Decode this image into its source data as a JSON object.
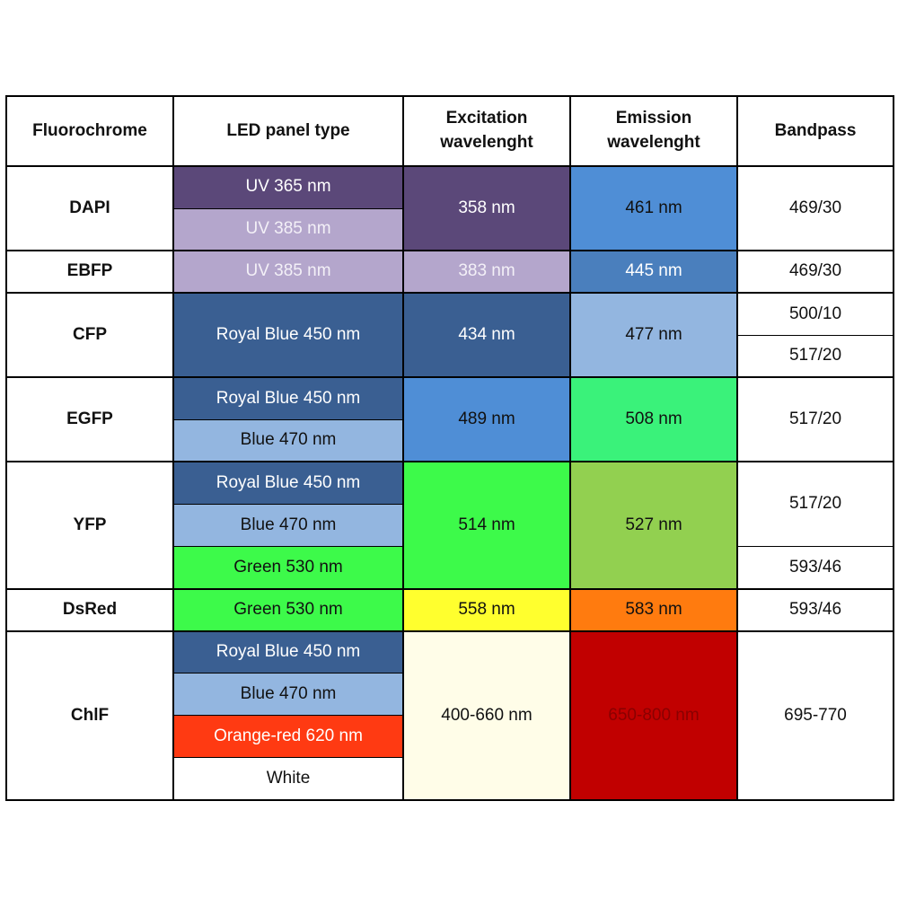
{
  "table": {
    "headers": {
      "fluorochrome": "Fluorochrome",
      "led_panel_type": "LED panel type",
      "excitation": "Excitation wavelenght",
      "emission": "Emission wavelenght",
      "bandpass": "Bandpass"
    },
    "rows": [
      {
        "fluorochrome": "DAPI",
        "led_panels": [
          {
            "label": "UV 365 nm",
            "color": "#5b4879"
          },
          {
            "label": "UV 385 nm",
            "color": "#b4a6cc"
          }
        ],
        "excitation": {
          "label": "358 nm",
          "color": "#5b4879"
        },
        "emission": {
          "label": "461 nm",
          "color": "#4f8ed6"
        },
        "bandpass": [
          "469/30"
        ]
      },
      {
        "fluorochrome": "EBFP",
        "led_panels": [
          {
            "label": "UV 385 nm",
            "color": "#b4a6cc"
          }
        ],
        "excitation": {
          "label": "383 nm",
          "color": "#b4a6cc"
        },
        "emission": {
          "label": "445 nm",
          "color": "#4a7fbd"
        },
        "bandpass": [
          "469/30"
        ]
      },
      {
        "fluorochrome": "CFP",
        "led_panels": [
          {
            "label": "Royal Blue 450 nm",
            "color": "#3a5f92"
          }
        ],
        "excitation": {
          "label": "434 nm",
          "color": "#3a5f92"
        },
        "emission": {
          "label": "477 nm",
          "color": "#93b6e0"
        },
        "bandpass": [
          "500/10",
          "517/20"
        ]
      },
      {
        "fluorochrome": "EGFP",
        "led_panels": [
          {
            "label": "Royal Blue 450 nm",
            "color": "#3a5f92"
          },
          {
            "label": "Blue 470 nm",
            "color": "#93b6e0"
          }
        ],
        "excitation": {
          "label": "489 nm",
          "color": "#4f8ed6"
        },
        "emission": {
          "label": "508 nm",
          "color": "#3af27a"
        },
        "bandpass": [
          "517/20"
        ]
      },
      {
        "fluorochrome": "YFP",
        "led_panels": [
          {
            "label": "Royal Blue 450 nm",
            "color": "#3a5f92"
          },
          {
            "label": "Blue 470 nm",
            "color": "#93b6e0"
          },
          {
            "label": "Green 530 nm",
            "color": "#3dfa4a"
          }
        ],
        "excitation": {
          "label": "514 nm",
          "color": "#3dfa4a"
        },
        "emission": {
          "label": "527 nm",
          "color": "#92d050"
        },
        "bandpass": [
          "517/20",
          "593/46"
        ]
      },
      {
        "fluorochrome": "DsRed",
        "led_panels": [
          {
            "label": "Green 530 nm",
            "color": "#3dfa4a"
          }
        ],
        "excitation": {
          "label": "558 nm",
          "color": "#ffff2e"
        },
        "emission": {
          "label": "583 nm",
          "color": "#ff7b0f"
        },
        "bandpass": [
          "593/46"
        ]
      },
      {
        "fluorochrome": "ChlF",
        "led_panels": [
          {
            "label": "Royal Blue 450 nm",
            "color": "#3a5f92"
          },
          {
            "label": "Blue 470 nm",
            "color": "#93b6e0"
          },
          {
            "label": "Orange-red 620 nm",
            "color": "#ff3a12"
          },
          {
            "label": "White",
            "color": "#ffffff"
          }
        ],
        "excitation": {
          "label": "400-660 nm",
          "color": "#fffde8"
        },
        "emission": {
          "label": "650-800 nm",
          "color": "#c10000"
        },
        "bandpass": [
          "695-770"
        ]
      }
    ]
  }
}
